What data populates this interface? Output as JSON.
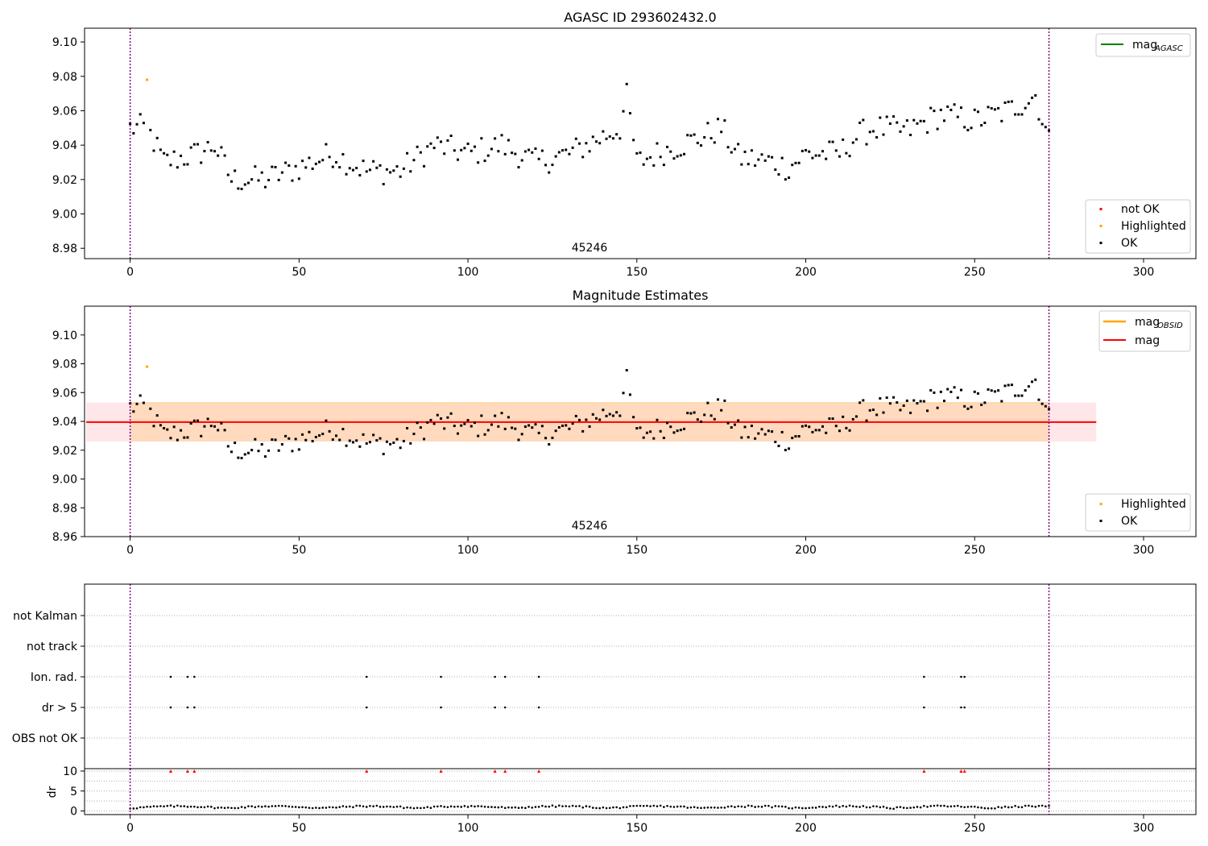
{
  "figure": {
    "x_ticks": [
      0,
      50,
      100,
      150,
      200,
      250,
      300
    ],
    "xlim": [
      -13.5,
      315.5
    ],
    "vlines": [
      0,
      272
    ],
    "obsid_label": "45246",
    "colors": {
      "ok": "#000000",
      "highlighted": "#ffa500",
      "not_ok": "#ff0000",
      "mag_agasc": "#008000",
      "mag_obsid": "#ffa500",
      "mag": "#ff0000",
      "vline": "#800080"
    }
  },
  "chart_data": [
    {
      "id": "agasc",
      "type": "scatter",
      "title": "AGASC ID 293602432.0",
      "xlabel": "",
      "ylabel": "",
      "ylim": [
        8.974,
        9.108
      ],
      "y_ticks": [
        "9.10",
        "9.08",
        "9.06",
        "9.04",
        "9.02",
        "9.00",
        "8.98"
      ],
      "legend_lines": [
        {
          "label": "mag",
          "sub": "AGASC",
          "color": "#008000"
        }
      ],
      "legend_points": [
        {
          "label": "not OK",
          "color": "#ff0000"
        },
        {
          "label": "Highlighted",
          "color": "#ffa500"
        },
        {
          "label": "OK",
          "color": "#000000"
        }
      ],
      "highlighted": [
        {
          "x": 5,
          "y": 9.078
        }
      ],
      "grid": false
    },
    {
      "id": "estimates",
      "type": "scatter",
      "title": "Magnitude Estimates",
      "xlabel": "",
      "ylabel": "",
      "ylim": [
        8.96,
        9.12
      ],
      "y_ticks": [
        "9.10",
        "9.08",
        "9.06",
        "9.04",
        "9.02",
        "9.00",
        "8.98",
        "8.96"
      ],
      "mag_line": 9.0395,
      "band": [
        9.026,
        9.053
      ],
      "legend_lines": [
        {
          "label": "mag",
          "sub": "OBSID",
          "color": "#ffa500"
        },
        {
          "label": "mag",
          "sub": "",
          "color": "#ff0000"
        }
      ],
      "legend_points": [
        {
          "label": "Highlighted",
          "color": "#ffa500"
        },
        {
          "label": "OK",
          "color": "#000000"
        }
      ],
      "highlighted": [
        {
          "x": 5,
          "y": 9.078
        }
      ],
      "grid": false
    },
    {
      "id": "flags",
      "type": "scatter",
      "categories": [
        "not Kalman",
        "not track",
        "Ion. rad.",
        "dr > 5",
        "OBS not OK"
      ],
      "flag_x": {
        "Ion. rad.": [
          12,
          17,
          19,
          70,
          92,
          108,
          111,
          121,
          235,
          246,
          247
        ],
        "dr > 5": [
          12,
          17,
          19,
          70,
          92,
          108,
          111,
          121,
          235,
          246,
          247
        ]
      },
      "grid": true
    },
    {
      "id": "dr",
      "type": "scatter",
      "ylabel": "dr",
      "y_ticks": [
        "10",
        "5",
        "0"
      ],
      "ylim": [
        -0.9,
        10.6
      ],
      "clipped_x": [
        12,
        17,
        19,
        70,
        92,
        108,
        111,
        121,
        235,
        246,
        247
      ],
      "grid": true
    }
  ]
}
